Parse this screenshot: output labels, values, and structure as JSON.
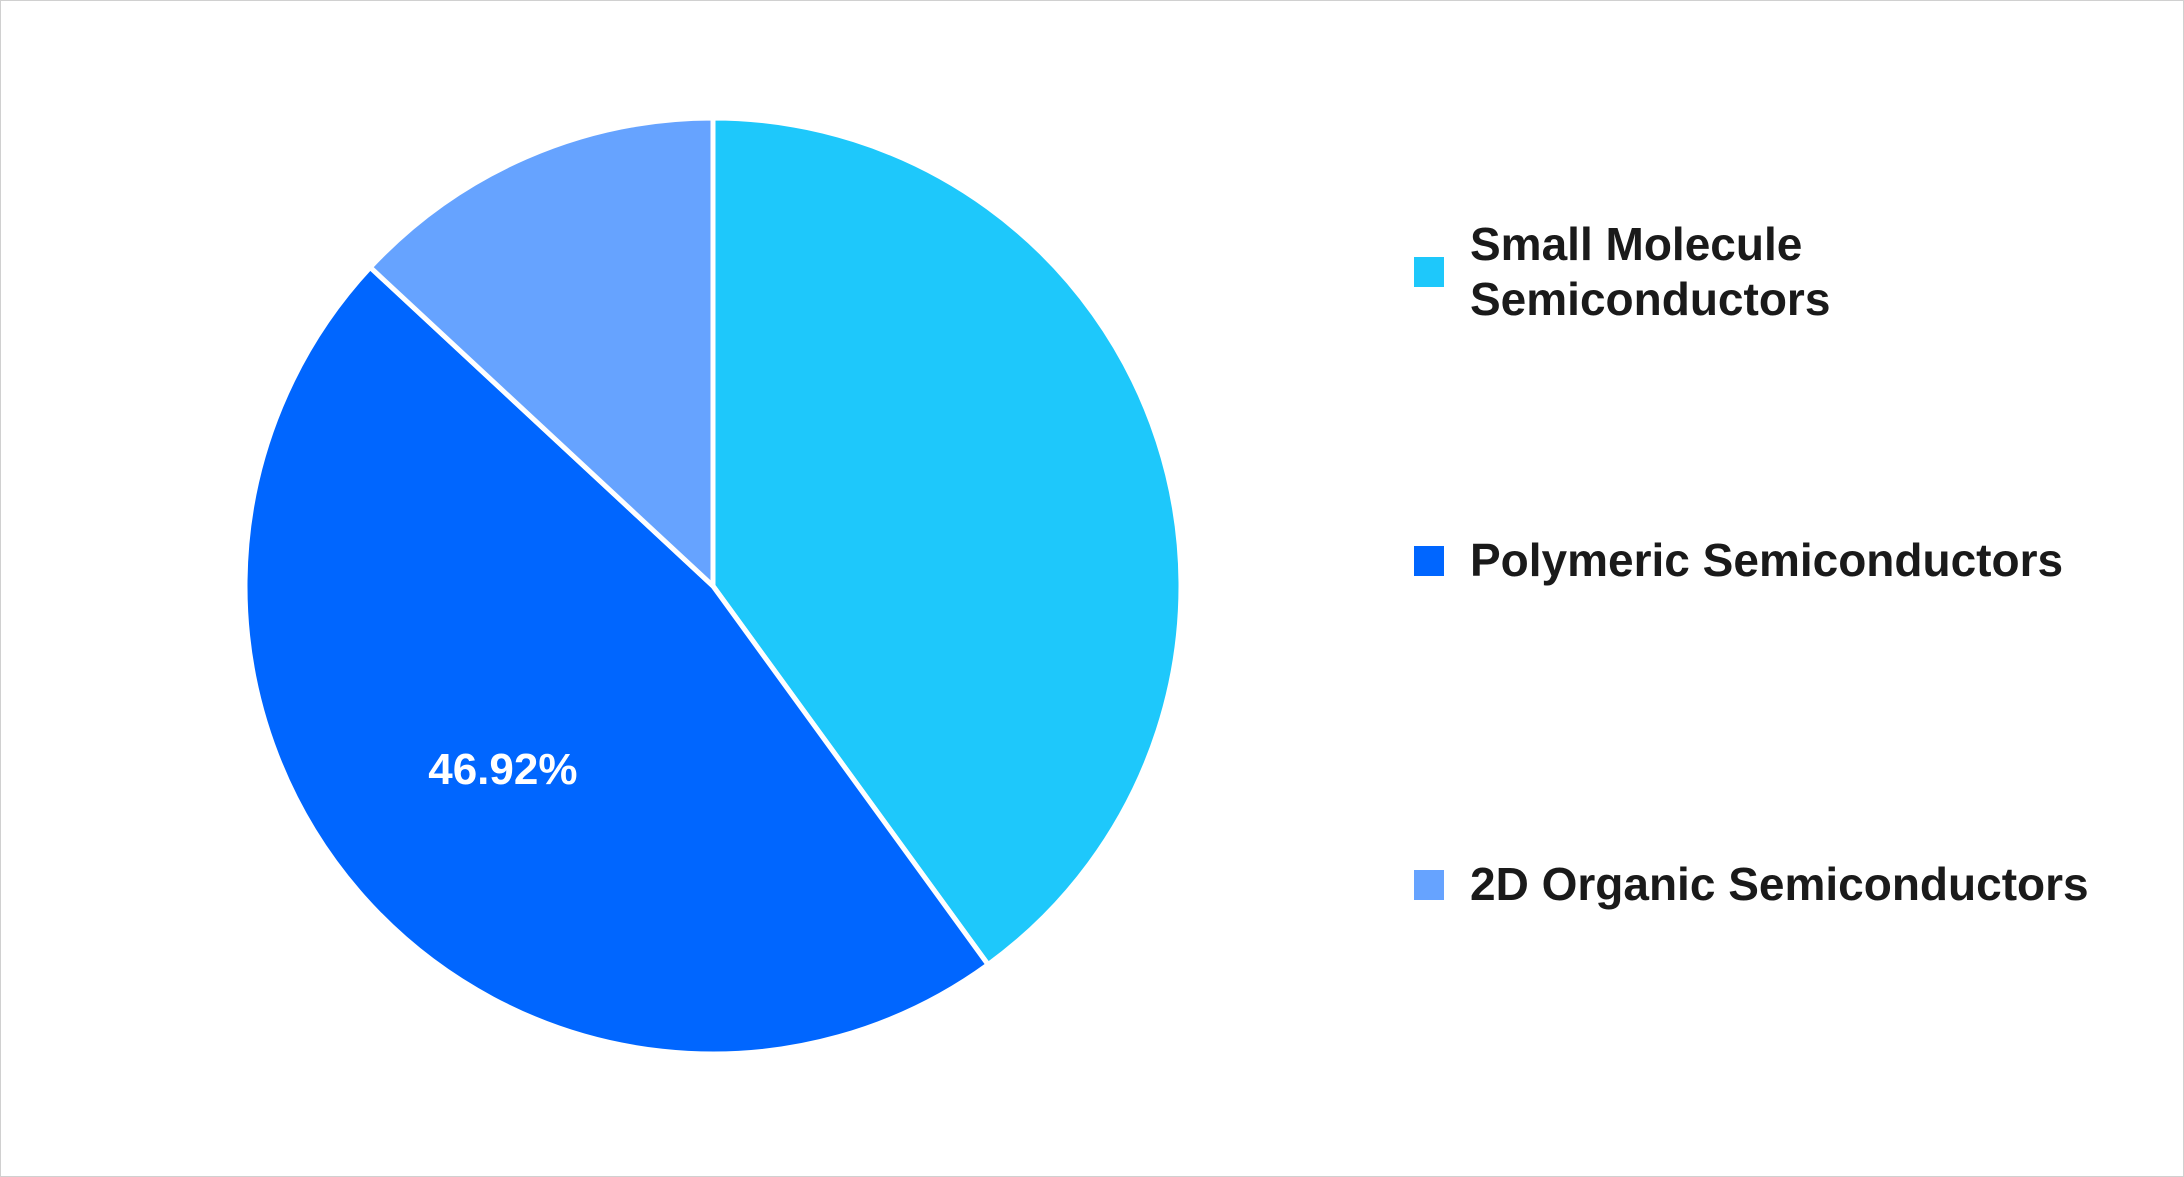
{
  "chart_data": {
    "type": "pie",
    "categories": [
      "Small Molecule Semiconductors",
      "Polymeric Semiconductors",
      "2D Organic Semiconductors"
    ],
    "values": [
      40.0,
      46.92,
      13.08
    ],
    "value_labels": [
      null,
      "46.92%",
      null
    ],
    "colors": [
      "#1ec8fb",
      "#0066ff",
      "#66a3ff"
    ]
  }
}
